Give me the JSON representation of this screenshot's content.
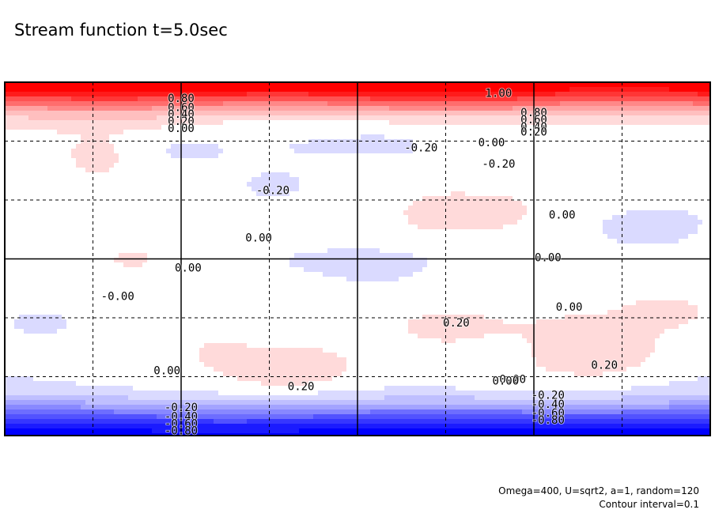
{
  "title": "Stream function t=5.0sec",
  "footer": {
    "params": "Omega=400, U=sqrt2, a=1, random=120",
    "contour_interval": "Contour interval=0.1"
  },
  "chart_data": {
    "type": "heatmap",
    "title": "Stream function t=5.0sec",
    "subtitle": "",
    "xlabel": "",
    "ylabel": "",
    "contour_interval": 0.1,
    "value_range": [
      -0.9,
      1.0
    ],
    "colormap": {
      "negative": "#0000ff",
      "zero": "#ffffff",
      "positive": "#ff0000"
    },
    "grid": true,
    "grid_style": "dashed",
    "legend": "none",
    "contour_labels": [
      {
        "text": "1.00",
        "value": 1.0
      },
      {
        "text": "0.80",
        "value": 0.8
      },
      {
        "text": "0.60",
        "value": 0.6
      },
      {
        "text": "0.40",
        "value": 0.4
      },
      {
        "text": "0.20",
        "value": 0.2
      },
      {
        "text": "0.00",
        "value": 0.0
      },
      {
        "text": "-0.20",
        "value": -0.2
      },
      {
        "text": "-0.40",
        "value": -0.4
      },
      {
        "text": "-0.60",
        "value": -0.6
      },
      {
        "text": "-0.80",
        "value": -0.8
      },
      {
        "text": "0.80",
        "value": 0.8
      },
      {
        "text": "0.60",
        "value": 0.6
      },
      {
        "text": "0.40",
        "value": 0.4
      },
      {
        "text": "0.20",
        "value": 0.2
      },
      {
        "text": "0.00",
        "value": 0.0
      },
      {
        "text": "-0.20",
        "value": -0.2
      },
      {
        "text": "-0.20",
        "value": -0.2
      },
      {
        "text": "-0.20",
        "value": -0.2
      },
      {
        "text": "0.00",
        "value": 0.0
      },
      {
        "text": "0.00",
        "value": 0.0
      },
      {
        "text": "0.00",
        "value": 0.0
      },
      {
        "text": "0.00",
        "value": 0.0
      },
      {
        "text": "-0.00",
        "value": 0.0
      },
      {
        "text": "0.00",
        "value": 0.0
      },
      {
        "text": "0.00",
        "value": 0.0
      },
      {
        "text": "0.00",
        "value": 0.0
      },
      {
        "text": "0.20",
        "value": 0.2
      },
      {
        "text": "0.20",
        "value": 0.2
      },
      {
        "text": "0.20",
        "value": 0.2
      },
      {
        "text": "0.00",
        "value": 0.0
      },
      {
        "text": "-0.20",
        "value": -0.2
      },
      {
        "text": "-0.40",
        "value": -0.4
      },
      {
        "text": "-0.60",
        "value": -0.6
      },
      {
        "text": "-0.80",
        "value": -0.8
      }
    ]
  }
}
